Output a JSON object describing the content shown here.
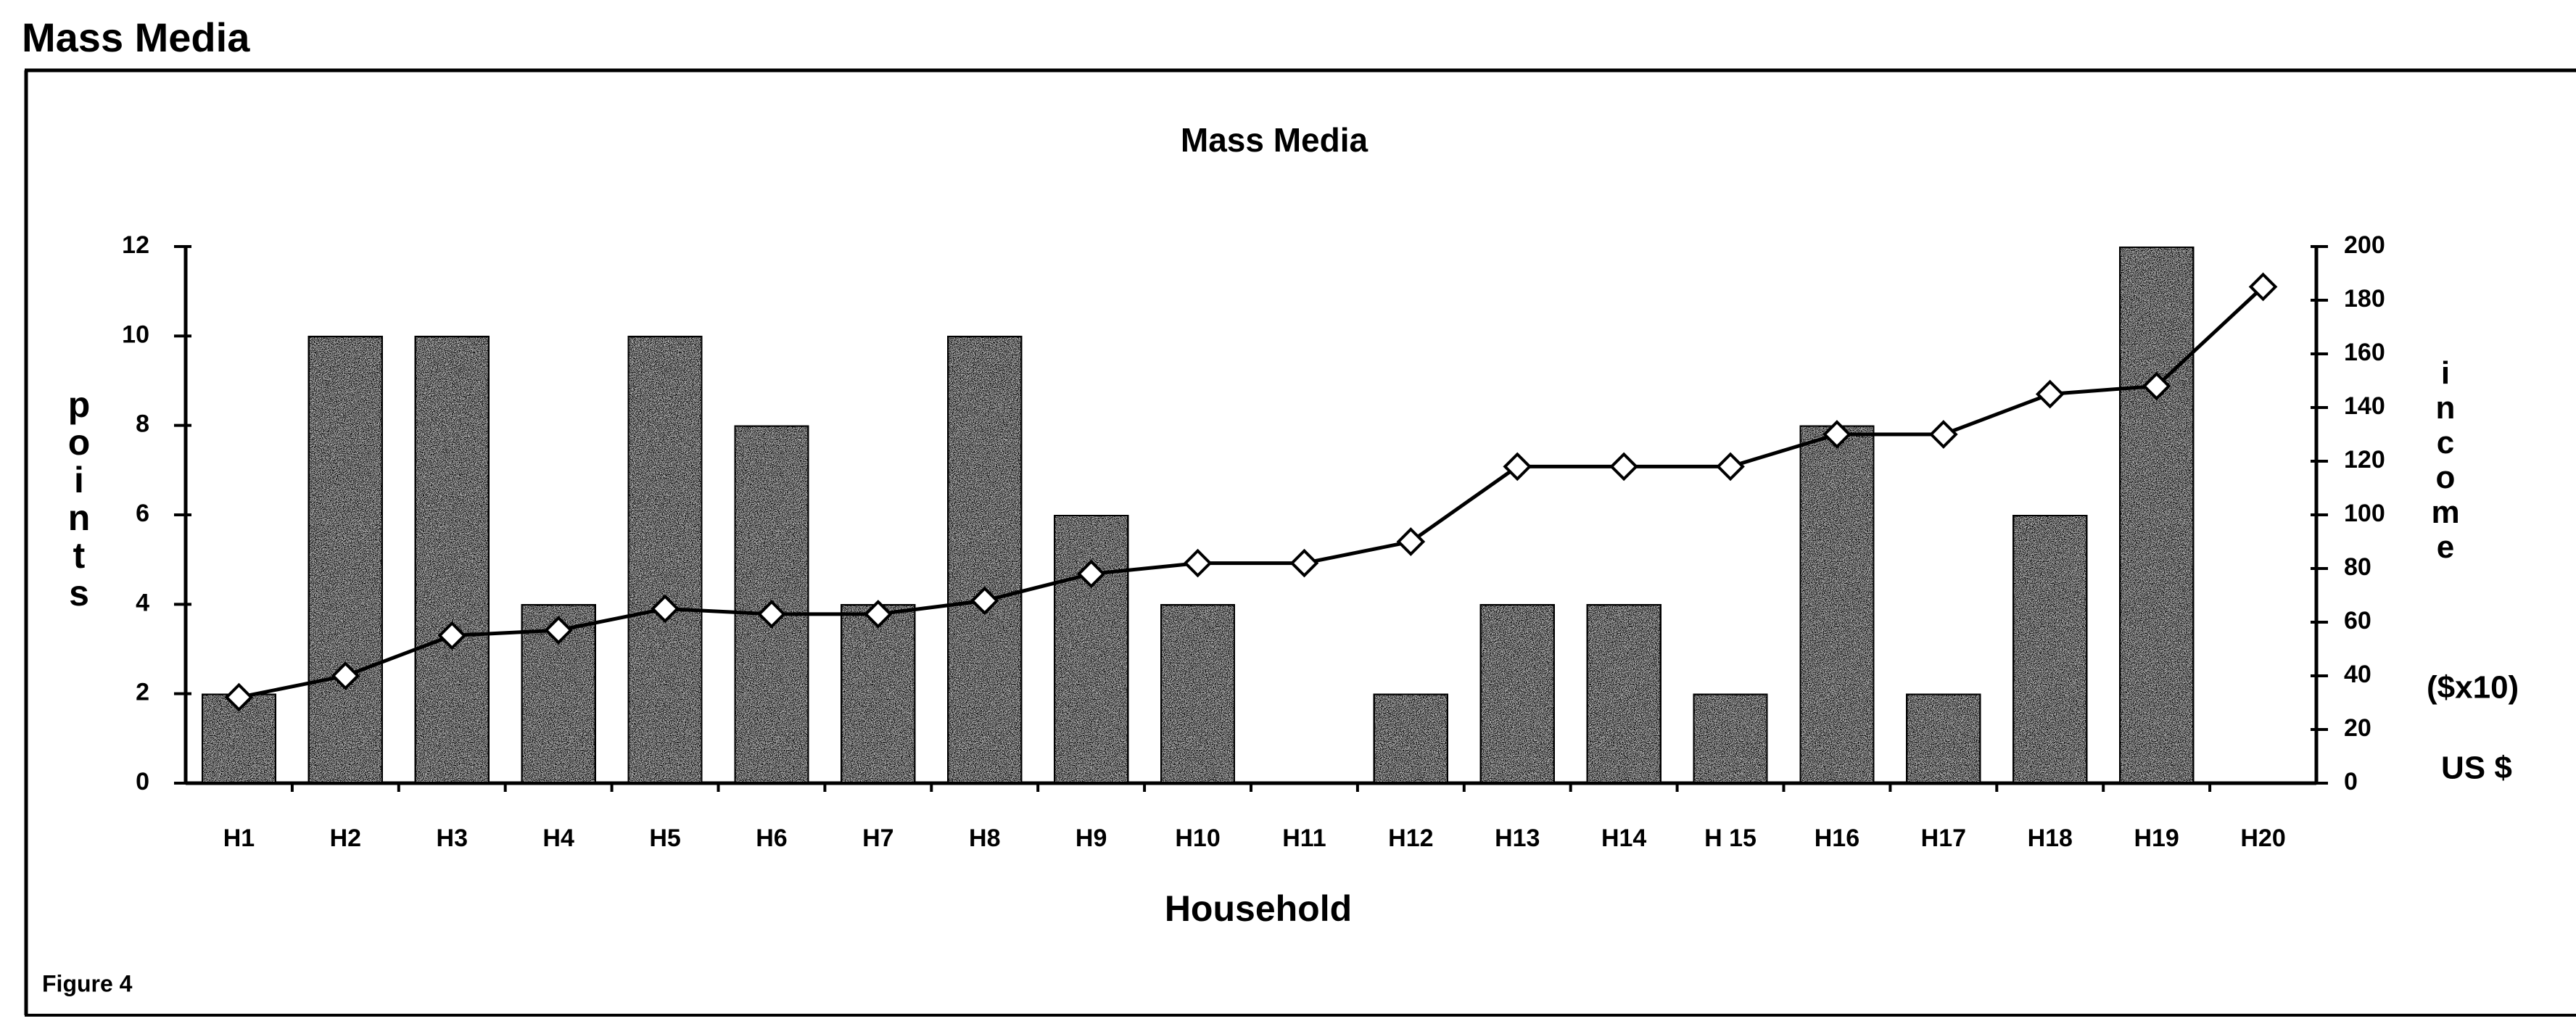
{
  "header": "Mass Media",
  "footer": "Figure 4",
  "chart_data": {
    "type": "bar",
    "title": "Mass Media",
    "x_label": "Household",
    "y_label": "points",
    "y2_label": {
      "text": "income",
      "unit": "($x10)",
      "currency": "US $"
    },
    "categories": [
      "H1",
      "H2",
      "H3",
      "H4",
      "H5",
      "H6",
      "H7",
      "H8",
      "H9",
      "H10",
      "H11",
      "H12",
      "H13",
      "H14",
      "H 15",
      "H16",
      "H17",
      "H18",
      "H19",
      "H20"
    ],
    "series": [
      {
        "type": "bar",
        "color": "#a8a8a8",
        "values": [
          2,
          10,
          10,
          4,
          10,
          8,
          4,
          10,
          6,
          4,
          null,
          2,
          4,
          4,
          2,
          8,
          2,
          6,
          12,
          null
        ]
      },
      {
        "type": "line",
        "axis": "y2",
        "color": "#000000",
        "values": [
          32,
          40,
          55,
          57,
          65,
          63,
          63,
          68,
          78,
          82,
          82,
          90,
          118,
          118,
          118,
          130,
          130,
          145,
          148,
          185
        ]
      }
    ],
    "ylim": [
      0,
      12
    ],
    "yticks": [
      0,
      2,
      4,
      6,
      8,
      10,
      12
    ],
    "y2lim": [
      0,
      200
    ],
    "y2ticks": [
      0,
      20,
      40,
      60,
      80,
      100,
      120,
      140,
      160,
      180,
      200
    ],
    "grid": false
  }
}
